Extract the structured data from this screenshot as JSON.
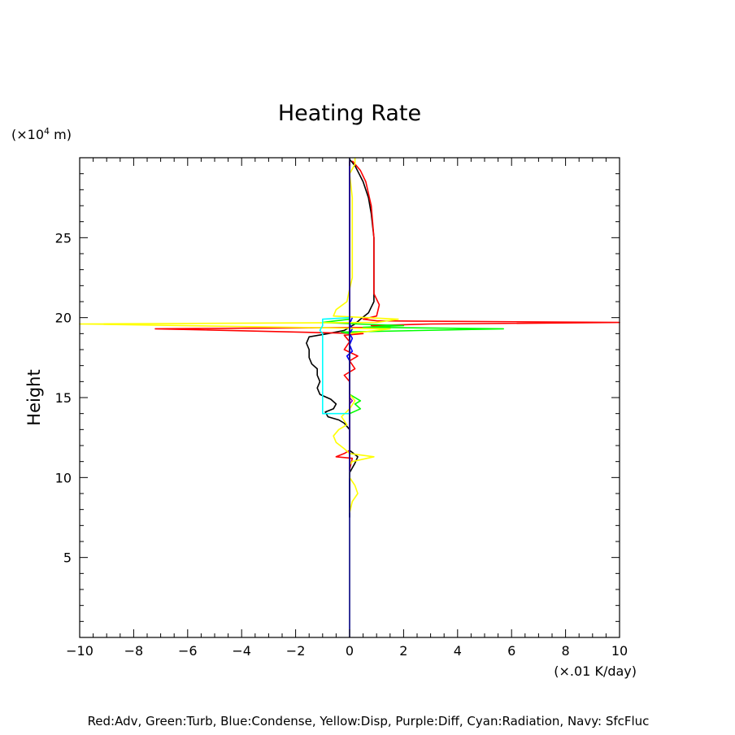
{
  "chart_data": {
    "type": "line",
    "title": "Heating Rate",
    "ylabel": "Height",
    "y_unit_prefix": "(×10",
    "y_unit_exp": "4",
    "y_unit_suffix": " m)",
    "x_unit": "(×.01 K/day)",
    "xlim": [
      -10,
      10
    ],
    "ylim": [
      0,
      30
    ],
    "xticks": [
      -10,
      -8,
      -6,
      -4,
      -2,
      0,
      2,
      4,
      6,
      8,
      10
    ],
    "yticks": [
      5,
      10,
      15,
      20,
      25
    ],
    "grid": false,
    "legend_text": "Red:Adv, Green:Turb, Blue:Condense, Yellow:Disp, Purple:Diff, Cyan:Radiation, Navy: SfcFluc",
    "series": [
      {
        "color": "#000000",
        "points": [
          [
            0,
            7.5
          ],
          [
            0,
            10.3
          ],
          [
            0.2,
            10.9
          ],
          [
            0.3,
            11.3
          ],
          [
            0,
            11.7
          ],
          [
            0,
            12.2
          ],
          [
            0,
            12.7
          ],
          [
            0,
            13.0
          ],
          [
            -0.2,
            13.4
          ],
          [
            -0.4,
            13.6
          ],
          [
            -0.8,
            13.8
          ],
          [
            -0.9,
            14.1
          ],
          [
            -0.6,
            14.3
          ],
          [
            -0.5,
            14.6
          ],
          [
            -0.7,
            14.9
          ],
          [
            -1.1,
            15.2
          ],
          [
            -1.2,
            15.6
          ],
          [
            -1.1,
            16.0
          ],
          [
            -1.2,
            16.4
          ],
          [
            -1.2,
            16.8
          ],
          [
            -1.4,
            17.1
          ],
          [
            -1.5,
            17.5
          ],
          [
            -1.5,
            18.0
          ],
          [
            -1.6,
            18.4
          ],
          [
            -1.5,
            18.8
          ],
          [
            -0.8,
            19.0
          ],
          [
            -0.2,
            19.2
          ],
          [
            0.2,
            19.6
          ],
          [
            0.4,
            19.9
          ],
          [
            0.7,
            20.3
          ],
          [
            0.9,
            21.0
          ],
          [
            0.9,
            22.0
          ],
          [
            0.9,
            23.0
          ],
          [
            0.9,
            24.0
          ],
          [
            0.9,
            25.0
          ],
          [
            0.8,
            26.5
          ],
          [
            0.7,
            27.5
          ],
          [
            0.5,
            28.5
          ],
          [
            0.2,
            29.5
          ],
          [
            0,
            29.9
          ]
        ]
      },
      {
        "color": "#ff0000",
        "points": [
          [
            0,
            10.5
          ],
          [
            0.1,
            11.2
          ],
          [
            -0.5,
            11.3
          ],
          [
            -0.2,
            11.5
          ],
          [
            0,
            11.7
          ],
          [
            0,
            12.5
          ],
          [
            0,
            14.0
          ],
          [
            0,
            14.7
          ],
          [
            0,
            16.0
          ],
          [
            -0.2,
            16.4
          ],
          [
            0.2,
            16.8
          ],
          [
            0,
            17.3
          ],
          [
            0.3,
            17.6
          ],
          [
            -0.2,
            18.0
          ],
          [
            0,
            18.5
          ],
          [
            -0.2,
            18.9
          ],
          [
            0.5,
            19.0
          ],
          [
            -7.2,
            19.3
          ],
          [
            1.5,
            19.4
          ],
          [
            0.8,
            19.5
          ],
          [
            3.0,
            19.6
          ],
          [
            10.0,
            19.7
          ],
          [
            1.0,
            19.8
          ],
          [
            0.5,
            19.9
          ],
          [
            1.0,
            20.1
          ],
          [
            1.1,
            20.8
          ],
          [
            0.9,
            21.5
          ],
          [
            0.9,
            22.5
          ],
          [
            0.9,
            23.5
          ],
          [
            0.9,
            25.0
          ],
          [
            0.8,
            27.0
          ],
          [
            0.6,
            28.5
          ],
          [
            0.4,
            29.2
          ],
          [
            0.1,
            29.8
          ]
        ]
      },
      {
        "color": "#00ff00",
        "points": [
          [
            0,
            13.5
          ],
          [
            0,
            14.0
          ],
          [
            0.4,
            14.3
          ],
          [
            0.2,
            14.6
          ],
          [
            0.4,
            14.8
          ],
          [
            0,
            15.2
          ],
          [
            0,
            19.0
          ],
          [
            -0.3,
            19.1
          ],
          [
            5.7,
            19.3
          ],
          [
            0.5,
            19.4
          ],
          [
            2.0,
            19.5
          ],
          [
            0.3,
            19.6
          ],
          [
            -1.0,
            19.7
          ],
          [
            0,
            19.9
          ]
        ]
      },
      {
        "color": "#0000ff",
        "points": [
          [
            0,
            17.3
          ],
          [
            -0.1,
            17.6
          ],
          [
            0.1,
            17.9
          ],
          [
            0,
            18.3
          ],
          [
            0.1,
            18.7
          ],
          [
            0,
            19.0
          ],
          [
            0.1,
            19.3
          ],
          [
            0,
            19.6
          ],
          [
            0.1,
            20.0
          ]
        ]
      },
      {
        "color": "#ffff00",
        "points": [
          [
            0,
            7.8
          ],
          [
            0.1,
            8.5
          ],
          [
            0.3,
            9.0
          ],
          [
            0.2,
            9.5
          ],
          [
            0,
            10.0
          ],
          [
            0,
            10.8
          ],
          [
            0.1,
            11.0
          ],
          [
            0.9,
            11.3
          ],
          [
            0,
            11.5
          ],
          [
            -0.2,
            11.8
          ],
          [
            -0.5,
            12.2
          ],
          [
            -0.6,
            12.6
          ],
          [
            -0.4,
            13.0
          ],
          [
            -0.1,
            13.3
          ],
          [
            -0.3,
            13.8
          ],
          [
            0,
            14.3
          ],
          [
            0.2,
            14.8
          ],
          [
            0,
            15.2
          ],
          [
            0,
            19.0
          ],
          [
            1.5,
            19.3
          ],
          [
            -10.0,
            19.6
          ],
          [
            1.0,
            19.7
          ],
          [
            1.8,
            19.9
          ],
          [
            -0.6,
            20.1
          ],
          [
            -0.5,
            20.5
          ],
          [
            -0.1,
            21.0
          ],
          [
            0,
            21.8
          ],
          [
            0.1,
            22.5
          ],
          [
            0.1,
            24.0
          ],
          [
            0.1,
            26.0
          ],
          [
            0.1,
            27.5
          ],
          [
            0,
            29.0
          ],
          [
            0.2,
            29.6
          ],
          [
            0.2,
            30.0
          ]
        ]
      },
      {
        "color": "#a000c0",
        "points": [
          [
            0,
            10.4
          ],
          [
            0,
            10.9
          ],
          [
            0,
            12.6
          ],
          [
            0,
            13.0
          ],
          [
            0,
            14.6
          ],
          [
            0.1,
            14.8
          ],
          [
            0,
            15.0
          ],
          [
            0,
            18.9
          ],
          [
            0,
            19.2
          ],
          [
            0,
            29.8
          ]
        ]
      },
      {
        "color": "#00ffff",
        "points": [
          [
            0,
            14.0
          ],
          [
            -1.0,
            14.0
          ],
          [
            -1.0,
            16.0
          ],
          [
            -1.0,
            18.0
          ],
          [
            -1.0,
            19.0
          ],
          [
            -1.1,
            19.2
          ],
          [
            -1.0,
            19.5
          ],
          [
            -1.0,
            19.9
          ],
          [
            0,
            20.0
          ]
        ]
      },
      {
        "color": "#000080",
        "points": [
          [
            0,
            0
          ],
          [
            0,
            30
          ]
        ]
      }
    ]
  }
}
